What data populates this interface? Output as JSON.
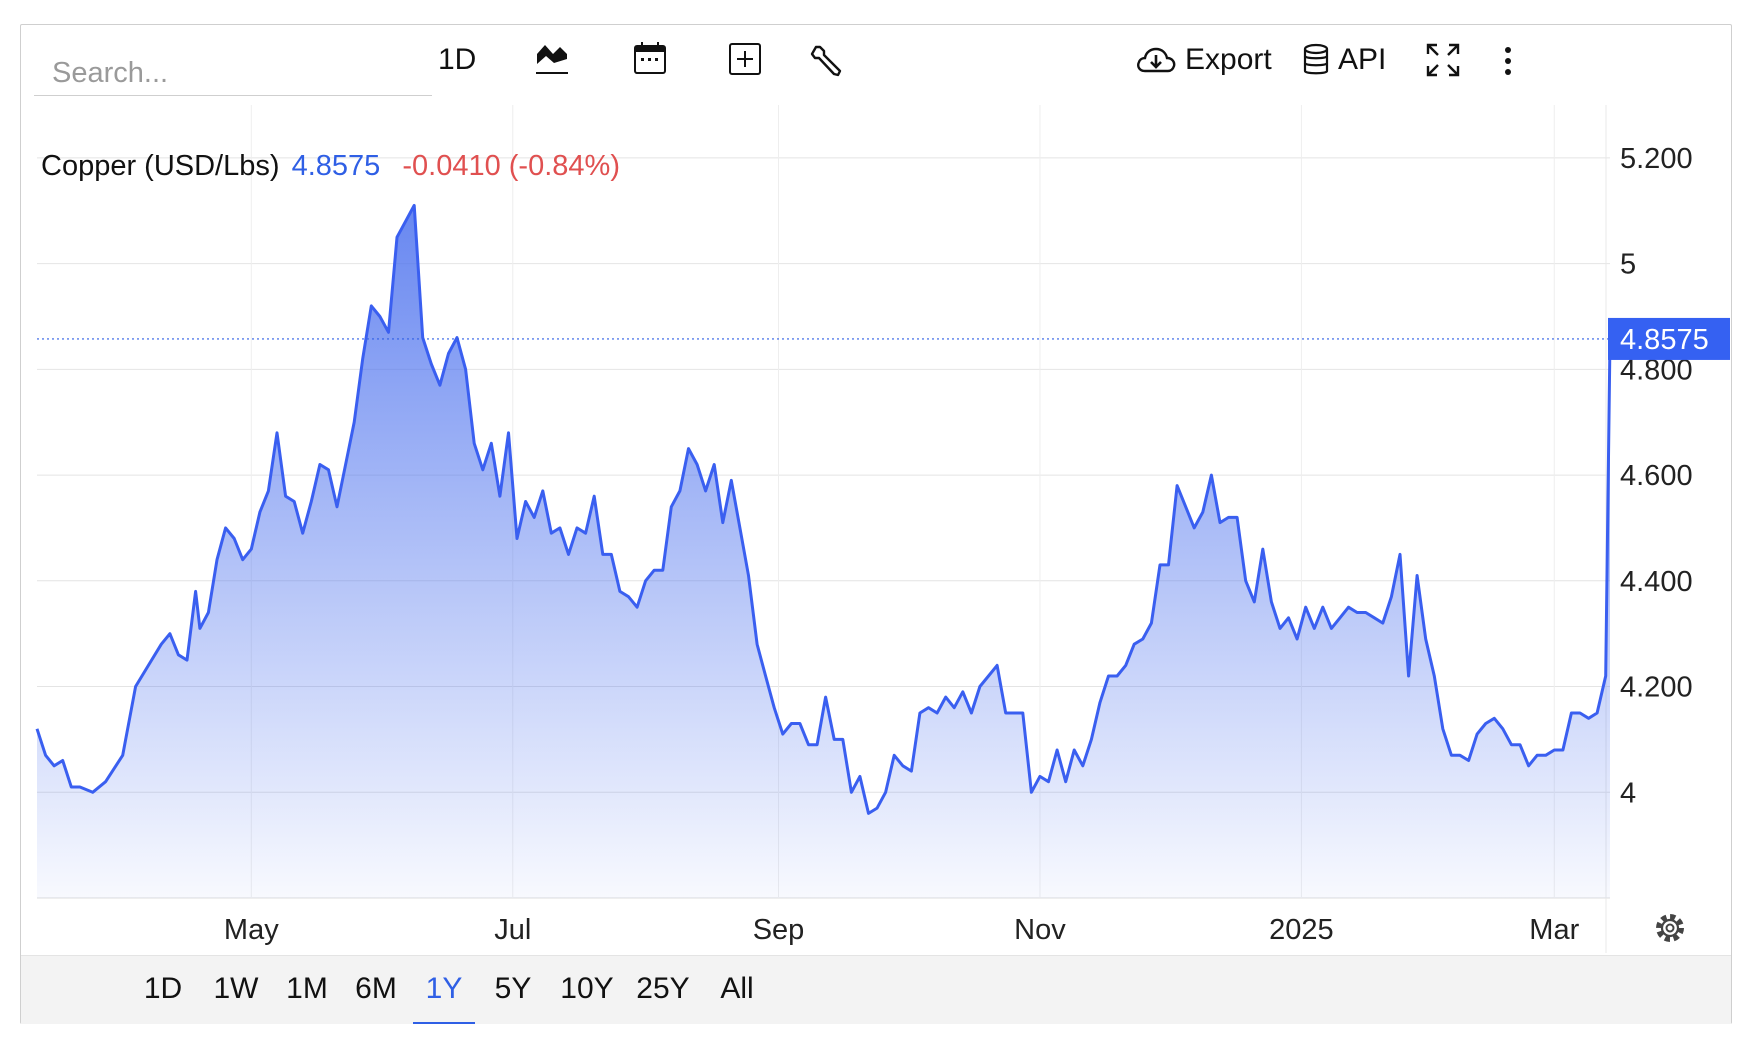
{
  "toolbar": {
    "search_placeholder": "Search...",
    "interval_label": "1D",
    "export_label": "Export",
    "api_label": "API",
    "icons": [
      "chart-type-icon",
      "calendar-icon",
      "compare-add-icon",
      "wrench-icon",
      "cloud-download-icon",
      "database-icon",
      "fullscreen-icon",
      "more-vertical-icon"
    ]
  },
  "legend": {
    "name": "Copper (USD/Lbs)",
    "price": "4.8575",
    "change": "-0.0410 (-0.84%)"
  },
  "price_tag": "4.8575",
  "range_buttons": [
    "1D",
    "1W",
    "1M",
    "6M",
    "1Y",
    "5Y",
    "10Y",
    "25Y",
    "All"
  ],
  "active_range": "1Y",
  "colors": {
    "line": "#3a5ff0",
    "change_negative": "#e05050",
    "price": "#2f5fe5"
  },
  "chart_data": {
    "type": "area",
    "title": "Copper (USD/Lbs)",
    "xlabel": "",
    "ylabel": "",
    "grid": true,
    "x_ticks": [
      "May",
      "Jul",
      "Sep",
      "Nov",
      "2025",
      "Mar"
    ],
    "x_tick_dates": [
      "2024-05-01",
      "2024-07-01",
      "2024-09-01",
      "2024-11-01",
      "2025-01-01",
      "2025-03-01"
    ],
    "y_ticks": [
      "5.200",
      "5",
      "4.800",
      "4.600",
      "4.400",
      "4.200",
      "4"
    ],
    "y_tick_values": [
      5.2,
      5.0,
      4.8,
      4.6,
      4.4,
      4.2,
      4.0
    ],
    "ylim": [
      3.8,
      5.3
    ],
    "xlim": [
      "2024-03-12",
      "2025-03-14"
    ],
    "last_value": 4.8575,
    "series": [
      {
        "name": "Copper (USD/Lbs)",
        "points": [
          [
            "2024-03-12",
            4.12
          ],
          [
            "2024-03-14",
            4.07
          ],
          [
            "2024-03-16",
            4.05
          ],
          [
            "2024-03-18",
            4.06
          ],
          [
            "2024-03-20",
            4.01
          ],
          [
            "2024-03-22",
            4.01
          ],
          [
            "2024-03-25",
            4.0
          ],
          [
            "2024-03-28",
            4.02
          ],
          [
            "2024-04-01",
            4.07
          ],
          [
            "2024-04-04",
            4.2
          ],
          [
            "2024-04-07",
            4.24
          ],
          [
            "2024-04-10",
            4.28
          ],
          [
            "2024-04-12",
            4.3
          ],
          [
            "2024-04-14",
            4.26
          ],
          [
            "2024-04-16",
            4.25
          ],
          [
            "2024-04-18",
            4.38
          ],
          [
            "2024-04-19",
            4.31
          ],
          [
            "2024-04-21",
            4.34
          ],
          [
            "2024-04-23",
            4.44
          ],
          [
            "2024-04-25",
            4.5
          ],
          [
            "2024-04-27",
            4.48
          ],
          [
            "2024-04-29",
            4.44
          ],
          [
            "2024-05-01",
            4.46
          ],
          [
            "2024-05-03",
            4.53
          ],
          [
            "2024-05-05",
            4.57
          ],
          [
            "2024-05-07",
            4.68
          ],
          [
            "2024-05-09",
            4.56
          ],
          [
            "2024-05-11",
            4.55
          ],
          [
            "2024-05-13",
            4.49
          ],
          [
            "2024-05-15",
            4.55
          ],
          [
            "2024-05-17",
            4.62
          ],
          [
            "2024-05-19",
            4.61
          ],
          [
            "2024-05-21",
            4.54
          ],
          [
            "2024-05-23",
            4.62
          ],
          [
            "2024-05-25",
            4.7
          ],
          [
            "2024-05-27",
            4.82
          ],
          [
            "2024-05-29",
            4.92
          ],
          [
            "2024-05-31",
            4.9
          ],
          [
            "2024-06-02",
            4.87
          ],
          [
            "2024-06-04",
            5.05
          ],
          [
            "2024-06-06",
            5.08
          ],
          [
            "2024-06-08",
            5.11
          ],
          [
            "2024-06-10",
            4.86
          ],
          [
            "2024-06-12",
            4.81
          ],
          [
            "2024-06-14",
            4.77
          ],
          [
            "2024-06-16",
            4.83
          ],
          [
            "2024-06-18",
            4.86
          ],
          [
            "2024-06-20",
            4.8
          ],
          [
            "2024-06-22",
            4.66
          ],
          [
            "2024-06-24",
            4.61
          ],
          [
            "2024-06-26",
            4.66
          ],
          [
            "2024-06-28",
            4.56
          ],
          [
            "2024-06-30",
            4.68
          ],
          [
            "2024-07-02",
            4.48
          ],
          [
            "2024-07-04",
            4.55
          ],
          [
            "2024-07-06",
            4.52
          ],
          [
            "2024-07-08",
            4.57
          ],
          [
            "2024-07-10",
            4.49
          ],
          [
            "2024-07-12",
            4.5
          ],
          [
            "2024-07-14",
            4.45
          ],
          [
            "2024-07-16",
            4.5
          ],
          [
            "2024-07-18",
            4.49
          ],
          [
            "2024-07-20",
            4.56
          ],
          [
            "2024-07-22",
            4.45
          ],
          [
            "2024-07-24",
            4.45
          ],
          [
            "2024-07-26",
            4.38
          ],
          [
            "2024-07-28",
            4.37
          ],
          [
            "2024-07-30",
            4.35
          ],
          [
            "2024-08-01",
            4.4
          ],
          [
            "2024-08-03",
            4.42
          ],
          [
            "2024-08-05",
            4.42
          ],
          [
            "2024-08-07",
            4.54
          ],
          [
            "2024-08-09",
            4.57
          ],
          [
            "2024-08-11",
            4.65
          ],
          [
            "2024-08-13",
            4.62
          ],
          [
            "2024-08-15",
            4.57
          ],
          [
            "2024-08-17",
            4.62
          ],
          [
            "2024-08-19",
            4.51
          ],
          [
            "2024-08-21",
            4.59
          ],
          [
            "2024-08-23",
            4.5
          ],
          [
            "2024-08-25",
            4.41
          ],
          [
            "2024-08-27",
            4.28
          ],
          [
            "2024-08-29",
            4.22
          ],
          [
            "2024-08-31",
            4.16
          ],
          [
            "2024-09-02",
            4.11
          ],
          [
            "2024-09-04",
            4.13
          ],
          [
            "2024-09-06",
            4.13
          ],
          [
            "2024-09-08",
            4.09
          ],
          [
            "2024-09-10",
            4.09
          ],
          [
            "2024-09-12",
            4.18
          ],
          [
            "2024-09-14",
            4.1
          ],
          [
            "2024-09-16",
            4.1
          ],
          [
            "2024-09-18",
            4.0
          ],
          [
            "2024-09-20",
            4.03
          ],
          [
            "2024-09-22",
            3.96
          ],
          [
            "2024-09-24",
            3.97
          ],
          [
            "2024-09-26",
            4.0
          ],
          [
            "2024-09-28",
            4.07
          ],
          [
            "2024-09-30",
            4.05
          ],
          [
            "2024-10-02",
            4.04
          ],
          [
            "2024-10-04",
            4.15
          ],
          [
            "2024-10-06",
            4.16
          ],
          [
            "2024-10-08",
            4.15
          ],
          [
            "2024-10-10",
            4.18
          ],
          [
            "2024-10-12",
            4.16
          ],
          [
            "2024-10-14",
            4.19
          ],
          [
            "2024-10-16",
            4.15
          ],
          [
            "2024-10-18",
            4.2
          ],
          [
            "2024-10-20",
            4.22
          ],
          [
            "2024-10-22",
            4.24
          ],
          [
            "2024-10-24",
            4.15
          ],
          [
            "2024-10-26",
            4.15
          ],
          [
            "2024-10-28",
            4.15
          ],
          [
            "2024-10-30",
            4.0
          ],
          [
            "2024-11-01",
            4.03
          ],
          [
            "2024-11-03",
            4.02
          ],
          [
            "2024-11-05",
            4.08
          ],
          [
            "2024-11-07",
            4.02
          ],
          [
            "2024-11-09",
            4.08
          ],
          [
            "2024-11-11",
            4.05
          ],
          [
            "2024-11-13",
            4.1
          ],
          [
            "2024-11-15",
            4.17
          ],
          [
            "2024-11-17",
            4.22
          ],
          [
            "2024-11-19",
            4.22
          ],
          [
            "2024-11-21",
            4.24
          ],
          [
            "2024-11-23",
            4.28
          ],
          [
            "2024-11-25",
            4.29
          ],
          [
            "2024-11-27",
            4.32
          ],
          [
            "2024-11-29",
            4.43
          ],
          [
            "2024-12-01",
            4.43
          ],
          [
            "2024-12-03",
            4.58
          ],
          [
            "2024-12-05",
            4.54
          ],
          [
            "2024-12-07",
            4.5
          ],
          [
            "2024-12-09",
            4.53
          ],
          [
            "2024-12-11",
            4.6
          ],
          [
            "2024-12-13",
            4.51
          ],
          [
            "2024-12-15",
            4.52
          ],
          [
            "2024-12-17",
            4.52
          ],
          [
            "2024-12-19",
            4.4
          ],
          [
            "2024-12-21",
            4.36
          ],
          [
            "2024-12-23",
            4.46
          ],
          [
            "2024-12-25",
            4.36
          ],
          [
            "2024-12-27",
            4.31
          ],
          [
            "2024-12-29",
            4.33
          ],
          [
            "2024-12-31",
            4.29
          ],
          [
            "2025-01-02",
            4.35
          ],
          [
            "2025-01-04",
            4.31
          ],
          [
            "2025-01-06",
            4.35
          ],
          [
            "2025-01-08",
            4.31
          ],
          [
            "2025-01-10",
            4.33
          ],
          [
            "2025-01-12",
            4.35
          ],
          [
            "2025-01-14",
            4.34
          ],
          [
            "2025-01-16",
            4.34
          ],
          [
            "2025-01-18",
            4.33
          ],
          [
            "2025-01-20",
            4.32
          ],
          [
            "2025-01-22",
            4.37
          ],
          [
            "2025-01-24",
            4.45
          ],
          [
            "2025-01-26",
            4.22
          ],
          [
            "2025-01-28",
            4.41
          ],
          [
            "2025-01-30",
            4.29
          ],
          [
            "2025-02-01",
            4.22
          ],
          [
            "2025-02-03",
            4.12
          ],
          [
            "2025-02-05",
            4.07
          ],
          [
            "2025-02-07",
            4.07
          ],
          [
            "2025-02-09",
            4.06
          ],
          [
            "2025-02-11",
            4.11
          ],
          [
            "2025-02-13",
            4.13
          ],
          [
            "2025-02-15",
            4.14
          ],
          [
            "2025-02-17",
            4.12
          ],
          [
            "2025-02-19",
            4.09
          ],
          [
            "2025-02-21",
            4.09
          ],
          [
            "2025-02-23",
            4.05
          ],
          [
            "2025-02-25",
            4.07
          ],
          [
            "2025-02-27",
            4.07
          ],
          [
            "2025-03-01",
            4.08
          ],
          [
            "2025-03-03",
            4.08
          ],
          [
            "2025-03-05",
            4.15
          ],
          [
            "2025-03-07",
            4.15
          ],
          [
            "2025-03-09",
            4.14
          ],
          [
            "2025-03-11",
            4.15
          ],
          [
            "2025-03-13",
            4.22
          ],
          [
            "2025-03-14",
            4.8575
          ]
        ]
      }
    ]
  }
}
